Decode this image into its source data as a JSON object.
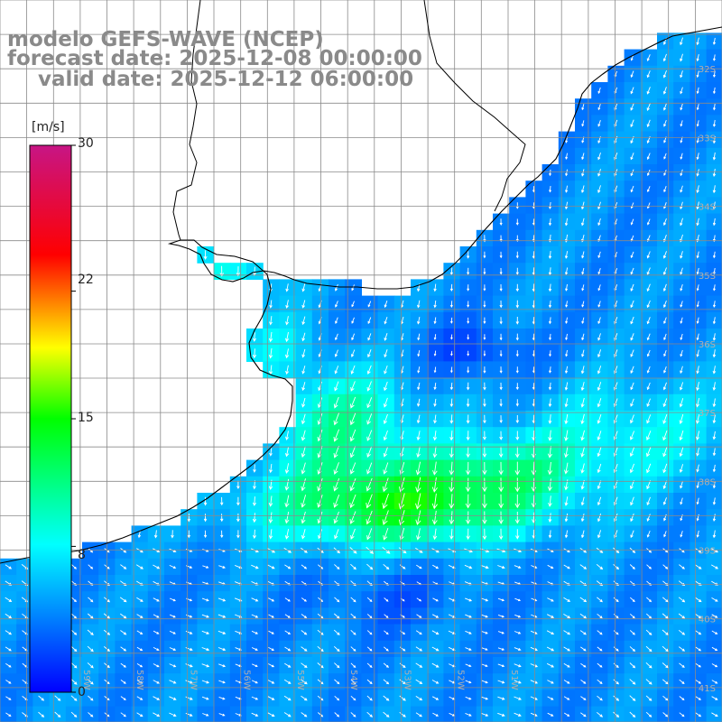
{
  "title": {
    "line1": "modelo GEFS-WAVE (NCEP)",
    "line2": "forecast date: 2025-12-08 00:00:00",
    "line3": "valid date: 2025-12-12 06:00:00"
  },
  "colorbar": {
    "unit": "[m/s]",
    "ticks": [
      "30",
      "22",
      "15",
      "8",
      "0"
    ],
    "tick_values": [
      30,
      22,
      15,
      8,
      0
    ],
    "colors": [
      "#0000ff",
      "#00ffff",
      "#00ff00",
      "#ffff00",
      "#ff0000",
      "#c71585"
    ]
  },
  "map": {
    "lon_range": [
      -60.5,
      -47
    ],
    "lat_range": [
      -41.5,
      -31
    ],
    "lat_labels": [
      "32S",
      "33S",
      "34S",
      "35S",
      "36S",
      "37S",
      "38S",
      "39S",
      "40S",
      "41S"
    ],
    "lon_labels": [
      "60W",
      "59W",
      "58W",
      "57W",
      "56W",
      "55W",
      "54W",
      "53W",
      "52W",
      "51W"
    ],
    "land_color": "#ffffff",
    "coast_color": "#000000",
    "grid_color": "#8a8a8a",
    "arrow_color": "#ffffff"
  }
}
